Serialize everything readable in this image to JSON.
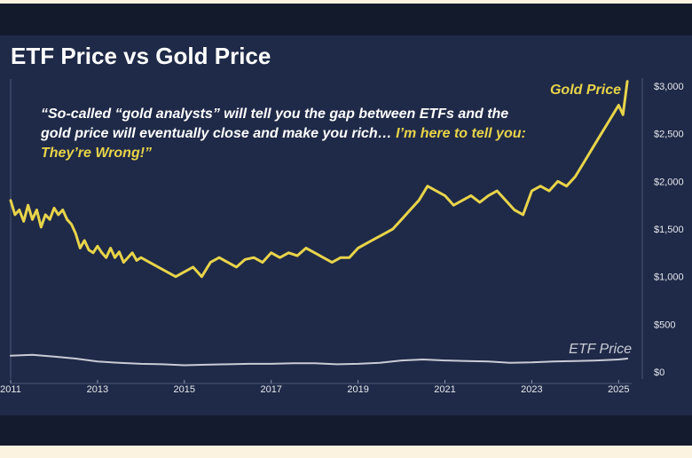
{
  "chart_data": {
    "type": "line",
    "title": "ETF Price vs Gold Price",
    "quote_main": "“So-called “gold analysts” will tell you the gap between ETFs and the gold price will eventually close and make you rich…",
    "quote_highlight": "I’m here to tell you: They’re Wrong!”",
    "x_ticks": [
      "2011",
      "2013",
      "2015",
      "2017",
      "2019",
      "2021",
      "2023",
      "2025"
    ],
    "y_ticks": [
      "$3,000",
      "$2,500",
      "$2,000",
      "$1,500",
      "$1,000",
      "$500",
      "$0"
    ],
    "xlim": [
      2011,
      2025.3
    ],
    "ylim": [
      0,
      3000
    ],
    "series": [
      {
        "name": "Gold Price",
        "color": "#e8d44a",
        "x": [
          2011.0,
          2011.1,
          2011.2,
          2011.3,
          2011.4,
          2011.5,
          2011.6,
          2011.7,
          2011.8,
          2011.9,
          2012.0,
          2012.1,
          2012.2,
          2012.3,
          2012.4,
          2012.5,
          2012.6,
          2012.7,
          2012.8,
          2012.9,
          2013.0,
          2013.1,
          2013.2,
          2013.3,
          2013.4,
          2013.5,
          2013.6,
          2013.7,
          2013.8,
          2013.9,
          2014.0,
          2014.2,
          2014.4,
          2014.6,
          2014.8,
          2015.0,
          2015.2,
          2015.4,
          2015.6,
          2015.8,
          2016.0,
          2016.2,
          2016.4,
          2016.6,
          2016.8,
          2017.0,
          2017.2,
          2017.4,
          2017.6,
          2017.8,
          2018.0,
          2018.2,
          2018.4,
          2018.6,
          2018.8,
          2019.0,
          2019.2,
          2019.4,
          2019.6,
          2019.8,
          2020.0,
          2020.2,
          2020.4,
          2020.6,
          2020.8,
          2021.0,
          2021.2,
          2021.4,
          2021.6,
          2021.8,
          2022.0,
          2022.2,
          2022.4,
          2022.6,
          2022.8,
          2023.0,
          2023.2,
          2023.4,
          2023.6,
          2023.8,
          2024.0,
          2024.2,
          2024.4,
          2024.6,
          2024.8,
          2025.0,
          2025.1,
          2025.2
        ],
        "values": [
          1800,
          1650,
          1700,
          1580,
          1750,
          1600,
          1700,
          1520,
          1650,
          1600,
          1720,
          1650,
          1700,
          1600,
          1550,
          1450,
          1300,
          1380,
          1280,
          1250,
          1320,
          1250,
          1200,
          1300,
          1200,
          1260,
          1150,
          1200,
          1250,
          1170,
          1200,
          1150,
          1100,
          1050,
          1000,
          1050,
          1100,
          1000,
          1150,
          1200,
          1150,
          1100,
          1180,
          1200,
          1150,
          1250,
          1200,
          1250,
          1220,
          1300,
          1250,
          1200,
          1150,
          1200,
          1200,
          1300,
          1350,
          1400,
          1450,
          1500,
          1600,
          1700,
          1800,
          1950,
          1900,
          1850,
          1750,
          1800,
          1850,
          1780,
          1850,
          1900,
          1800,
          1700,
          1650,
          1900,
          1950,
          1900,
          2000,
          1950,
          2050,
          2200,
          2350,
          2500,
          2650,
          2800,
          2700,
          3050
        ]
      },
      {
        "name": "ETF Price",
        "color": "#c9ccd6",
        "x": [
          2011.0,
          2011.5,
          2012.0,
          2012.5,
          2013.0,
          2013.5,
          2014.0,
          2014.5,
          2015.0,
          2015.5,
          2016.0,
          2016.5,
          2017.0,
          2017.5,
          2018.0,
          2018.5,
          2019.0,
          2019.5,
          2020.0,
          2020.5,
          2021.0,
          2021.5,
          2022.0,
          2022.5,
          2023.0,
          2023.5,
          2024.0,
          2024.5,
          2025.0,
          2025.2
        ],
        "values": [
          170,
          180,
          160,
          140,
          110,
          95,
          85,
          80,
          70,
          75,
          80,
          85,
          85,
          90,
          90,
          80,
          85,
          95,
          120,
          130,
          120,
          115,
          110,
          95,
          100,
          110,
          115,
          120,
          130,
          140
        ]
      }
    ],
    "grid": false,
    "legend": "inline labels"
  }
}
